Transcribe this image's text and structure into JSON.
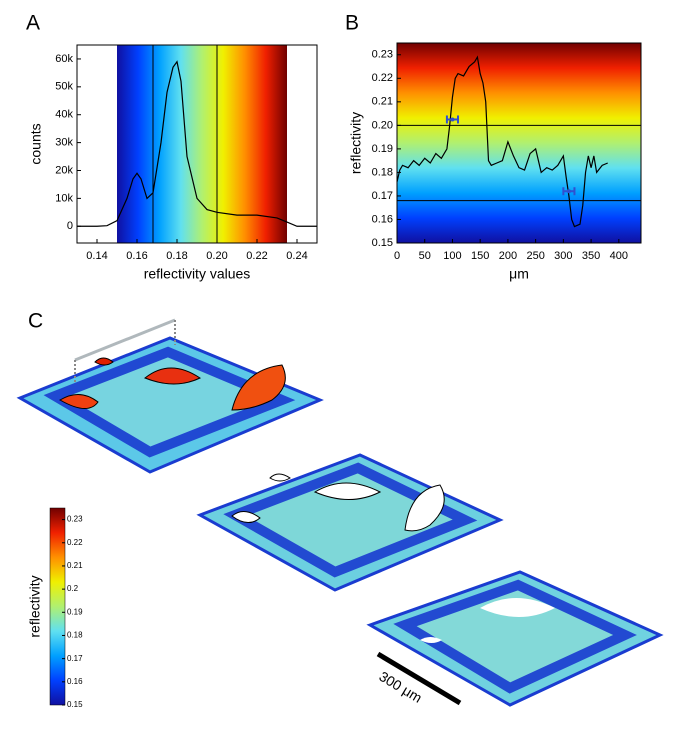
{
  "chart_data": [
    {
      "type": "line",
      "panel_label": "A",
      "xlabel": "reflectivity values",
      "ylabel": "counts",
      "xlim": [
        0.13,
        0.25
      ],
      "ylim": [
        -6000,
        65000
      ],
      "xticks": [
        0.14,
        0.16,
        0.18,
        {
          "value": 0.2,
          "label": "0.20"
        },
        0.22,
        0.24
      ],
      "yticks": [
        0,
        {
          "value": 10000,
          "label": "10k"
        },
        {
          "value": 20000,
          "label": "20k"
        },
        {
          "value": 30000,
          "label": "30k"
        },
        {
          "value": 40000,
          "label": "40k"
        },
        {
          "value": 50000,
          "label": "50k"
        },
        {
          "value": 60000,
          "label": "60k"
        }
      ],
      "colormap": [
        "#1010a0",
        "#0040ff",
        "#00a0ff",
        "#60e0f0",
        "#b0f070",
        "#f0f000",
        "#ff9000",
        "#f02000",
        "#700000"
      ],
      "colormap_range": [
        0.15,
        0.235
      ],
      "vlines": [
        0.168,
        0.2
      ],
      "color": "#000000",
      "x": [
        0.13,
        0.14,
        0.145,
        0.15,
        0.155,
        0.158,
        0.16,
        0.162,
        0.165,
        0.168,
        0.172,
        0.175,
        0.178,
        0.18,
        0.182,
        0.185,
        0.19,
        0.195,
        0.2,
        0.21,
        0.22,
        0.23,
        0.235,
        0.24,
        0.25
      ],
      "values": [
        0,
        0,
        200,
        2000,
        10000,
        17000,
        19000,
        17000,
        10000,
        12000,
        30000,
        48000,
        57000,
        59000,
        52000,
        25000,
        10000,
        6000,
        5000,
        4000,
        4000,
        3000,
        1500,
        0,
        0
      ]
    },
    {
      "type": "line",
      "panel_label": "B",
      "xlabel": "μm",
      "ylabel": "reflectivity",
      "xlim": [
        0,
        440
      ],
      "ylim": [
        0.15,
        0.235
      ],
      "xticks": [
        0,
        50,
        100,
        150,
        200,
        250,
        300,
        350,
        400
      ],
      "yticks": [
        0.15,
        0.16,
        0.17,
        0.18,
        0.19,
        {
          "value": 0.2,
          "label": "0.20"
        },
        0.21,
        0.22,
        0.23
      ],
      "colormap": [
        "#1010a0",
        "#0040ff",
        "#00a0ff",
        "#60e0f0",
        "#b0f070",
        "#f0f000",
        "#ff9000",
        "#f02000",
        "#700000"
      ],
      "hlines": [
        0.2,
        0.168
      ],
      "color": "#000000",
      "marker_color": "#3050d0",
      "markers": [
        {
          "x": 100,
          "y": 0.2025,
          "xerr": 10
        },
        {
          "x": 310,
          "y": 0.172,
          "xerr": 10
        }
      ],
      "x": [
        0,
        5,
        10,
        20,
        30,
        40,
        50,
        60,
        70,
        80,
        90,
        95,
        100,
        105,
        110,
        120,
        130,
        140,
        145,
        150,
        155,
        160,
        165,
        170,
        180,
        190,
        200,
        210,
        220,
        230,
        240,
        250,
        260,
        270,
        280,
        290,
        300,
        305,
        310,
        315,
        320,
        330,
        335,
        340,
        345,
        350,
        355,
        360,
        370,
        380
      ],
      "values": [
        0.176,
        0.181,
        0.183,
        0.182,
        0.185,
        0.183,
        0.186,
        0.184,
        0.188,
        0.186,
        0.19,
        0.2,
        0.212,
        0.22,
        0.222,
        0.221,
        0.225,
        0.227,
        0.229,
        0.222,
        0.218,
        0.21,
        0.185,
        0.183,
        0.184,
        0.185,
        0.193,
        0.187,
        0.182,
        0.181,
        0.188,
        0.19,
        0.18,
        0.182,
        0.181,
        0.183,
        0.187,
        0.178,
        0.17,
        0.16,
        0.157,
        0.158,
        0.166,
        0.18,
        0.187,
        0.182,
        0.187,
        0.18,
        0.183,
        0.184
      ]
    },
    {
      "type": "colorbar",
      "panel_label": "C",
      "ylabel": "reflectivity",
      "ylim": [
        0.15,
        0.235
      ],
      "yticks": [
        0.15,
        0.16,
        0.17,
        0.18,
        0.19,
        0.2,
        0.21,
        0.22,
        0.23
      ],
      "colormap": [
        "#1010a0",
        "#0040ff",
        "#00a0ff",
        "#60e0f0",
        "#b0f070",
        "#f0f000",
        "#ff9000",
        "#f02000",
        "#700000"
      ],
      "scale_label": "300 μm"
    }
  ]
}
